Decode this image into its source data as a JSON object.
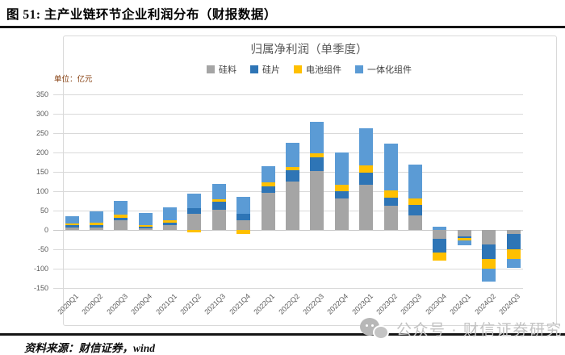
{
  "page": {
    "figure_label": "图 51:  主产业链环节企业利润分布（财报数据）",
    "source_note": "资料来源：财信证券，wind",
    "watermark": {
      "icon": "wechat-icon",
      "text": "公众号 · 财信证券研究"
    }
  },
  "chart_data": {
    "type": "bar",
    "stacked": true,
    "title": "归属净利润（单季度）",
    "unit_label": "单位：亿元",
    "ylabel": "亿元",
    "ylim": [
      -150,
      350
    ],
    "ytick_step": 50,
    "grid": true,
    "legend_position": "top",
    "categories": [
      "2020Q1",
      "2020Q2",
      "2020Q3",
      "2020Q4",
      "2021Q1",
      "2021Q2",
      "2021Q3",
      "2021Q4",
      "2022Q1",
      "2022Q2",
      "2022Q3",
      "2022Q4",
      "2023Q1",
      "2023Q2",
      "2023Q3",
      "2023Q4",
      "2024Q1",
      "2024Q2",
      "2024Q3"
    ],
    "series": [
      {
        "name": "硅料",
        "color": "#A5A5A5",
        "values": [
          6,
          6,
          25,
          4,
          12,
          42,
          52,
          26,
          96,
          124,
          152,
          81,
          117,
          62,
          37,
          -23,
          -16,
          -38,
          -11
        ]
      },
      {
        "name": "硅片",
        "color": "#2E75B6",
        "values": [
          6,
          6,
          7,
          4,
          6,
          15,
          21,
          15,
          17,
          30,
          35,
          19,
          31,
          22,
          27,
          -35,
          -5,
          -38,
          -40
        ]
      },
      {
        "name": "电池组件",
        "color": "#FFC000",
        "values": [
          5,
          6,
          7,
          4,
          6,
          -6,
          7,
          -10,
          10,
          9,
          11,
          16,
          18,
          19,
          17,
          -22,
          -7,
          -25,
          -24
        ]
      },
      {
        "name": "一体化组件",
        "color": "#5B9BD5",
        "values": [
          18,
          29,
          35,
          32,
          34,
          37,
          38,
          44,
          42,
          61,
          82,
          84,
          97,
          120,
          87,
          9,
          -11,
          -33,
          -23
        ]
      }
    ],
    "colors": {
      "gridline": "#D9D9D9",
      "axis_text": "#595959",
      "title_text": "#595959",
      "unit_text": "#843C0C"
    }
  }
}
